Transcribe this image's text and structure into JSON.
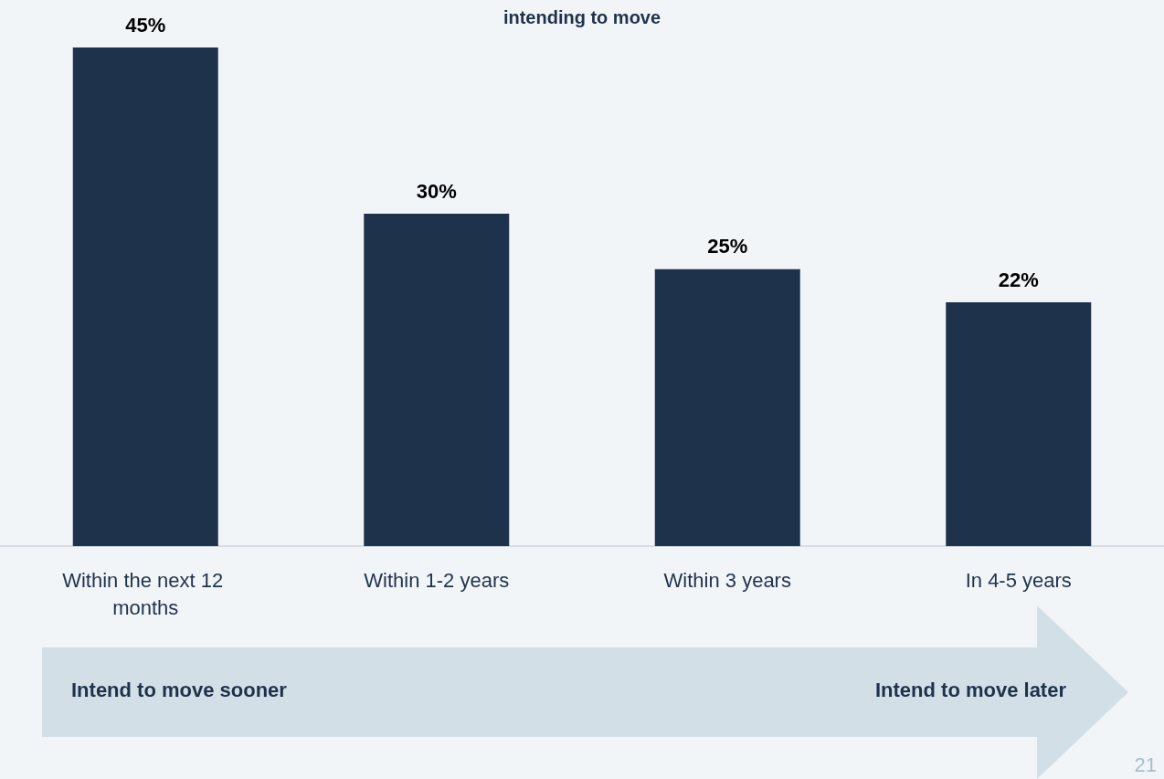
{
  "chart_data": {
    "type": "bar",
    "title": "intending to move",
    "categories": [
      "Within the next 12 months",
      "Within 1-2 years",
      "Within 3 years",
      "In 4-5 years"
    ],
    "values": [
      45,
      30,
      25,
      22
    ],
    "value_labels": [
      "45%",
      "30%",
      "25%",
      "22%"
    ],
    "color": "#1f324b",
    "annotations": [
      "Intend to move sooner",
      "Intend to move later",
      "21"
    ]
  }
}
